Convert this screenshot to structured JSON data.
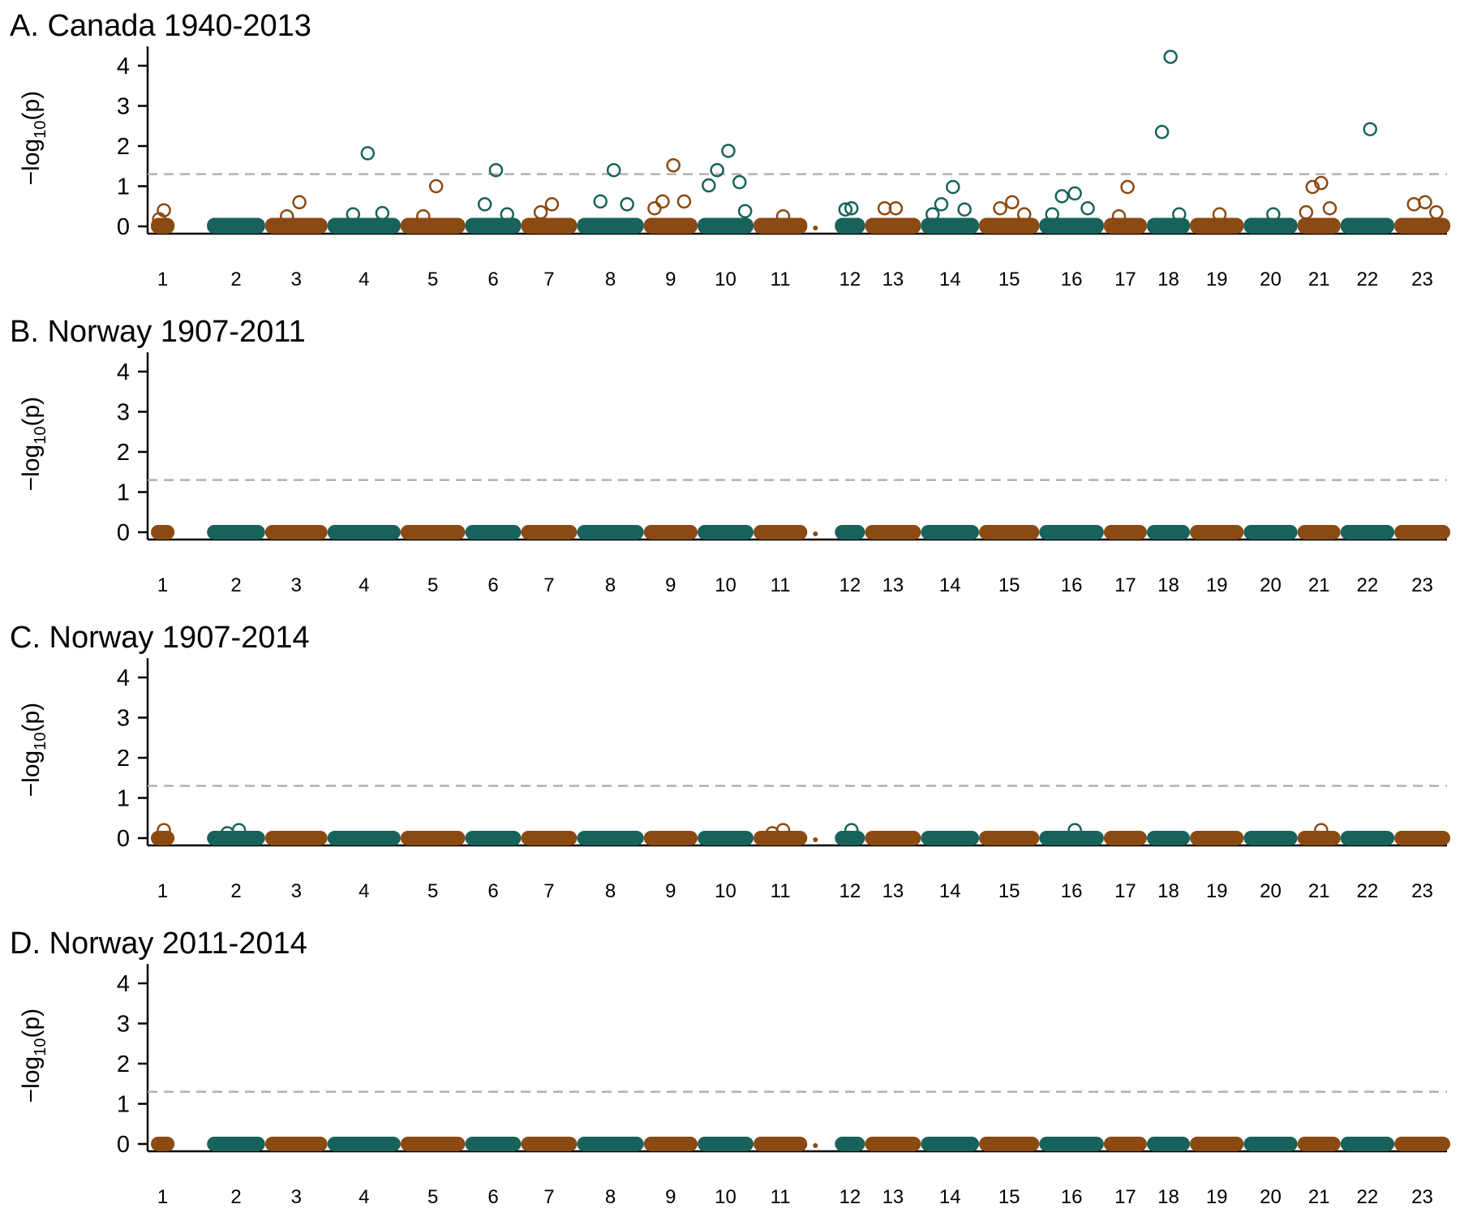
{
  "colors": {
    "teal": "#17635b",
    "brown": "#8b4a12",
    "threshold": "#b0b0b0",
    "axis": "#000000"
  },
  "y_axis_label": {
    "prefix": "−log",
    "subscript": "10",
    "suffix": "(p)"
  },
  "chart_data": [
    {
      "type": "scatter",
      "title": "A. Canada 1940-2013",
      "ylabel": "−log10(p)",
      "yticks": [
        0,
        1,
        2,
        3,
        4
      ],
      "ylim": [
        0,
        4.4
      ],
      "threshold": 1.3,
      "chromosomes": [
        "1",
        "2",
        "3",
        "4",
        "5",
        "6",
        "7",
        "8",
        "9",
        "10",
        "11",
        "12",
        "13",
        "14",
        "15",
        "16",
        "17",
        "18",
        "19",
        "20",
        "21",
        "22",
        "23"
      ],
      "base_band": 0.03,
      "highlights": [
        {
          "chr": "1",
          "y": 0.4
        },
        {
          "chr": "1",
          "y": 0.18
        },
        {
          "chr": "3",
          "y": 0.6
        },
        {
          "chr": "3",
          "y": 0.25
        },
        {
          "chr": "4",
          "y": 1.82
        },
        {
          "chr": "4",
          "y": 0.3
        },
        {
          "chr": "4",
          "y": 0.33
        },
        {
          "chr": "5",
          "y": 1.0
        },
        {
          "chr": "5",
          "y": 0.25
        },
        {
          "chr": "6",
          "y": 1.4
        },
        {
          "chr": "6",
          "y": 0.55
        },
        {
          "chr": "6",
          "y": 0.3
        },
        {
          "chr": "7",
          "y": 0.55
        },
        {
          "chr": "7",
          "y": 0.35
        },
        {
          "chr": "8",
          "y": 1.4
        },
        {
          "chr": "8",
          "y": 0.62
        },
        {
          "chr": "8",
          "y": 0.55
        },
        {
          "chr": "9",
          "y": 1.52
        },
        {
          "chr": "9",
          "y": 0.62
        },
        {
          "chr": "9",
          "y": 0.62
        },
        {
          "chr": "9",
          "y": 0.45
        },
        {
          "chr": "10",
          "y": 1.88
        },
        {
          "chr": "10",
          "y": 1.4
        },
        {
          "chr": "10",
          "y": 1.1
        },
        {
          "chr": "10",
          "y": 1.02
        },
        {
          "chr": "10",
          "y": 0.38
        },
        {
          "chr": "11",
          "y": 0.25
        },
        {
          "chr": "12",
          "y": 0.45
        },
        {
          "chr": "12",
          "y": 0.42
        },
        {
          "chr": "13",
          "y": 0.45
        },
        {
          "chr": "13",
          "y": 0.45
        },
        {
          "chr": "14",
          "y": 0.98
        },
        {
          "chr": "14",
          "y": 0.55
        },
        {
          "chr": "14",
          "y": 0.42
        },
        {
          "chr": "14",
          "y": 0.3
        },
        {
          "chr": "15",
          "y": 0.6
        },
        {
          "chr": "15",
          "y": 0.45
        },
        {
          "chr": "15",
          "y": 0.3
        },
        {
          "chr": "16",
          "y": 0.82
        },
        {
          "chr": "16",
          "y": 0.75
        },
        {
          "chr": "16",
          "y": 0.45
        },
        {
          "chr": "16",
          "y": 0.3
        },
        {
          "chr": "17",
          "y": 0.98
        },
        {
          "chr": "17",
          "y": 0.25
        },
        {
          "chr": "18",
          "y": 4.22
        },
        {
          "chr": "18",
          "y": 2.35
        },
        {
          "chr": "18",
          "y": 0.3
        },
        {
          "chr": "19",
          "y": 0.3
        },
        {
          "chr": "20",
          "y": 0.3
        },
        {
          "chr": "21",
          "y": 1.08
        },
        {
          "chr": "21",
          "y": 0.98
        },
        {
          "chr": "21",
          "y": 0.45
        },
        {
          "chr": "21",
          "y": 0.35
        },
        {
          "chr": "22",
          "y": 2.42
        },
        {
          "chr": "23",
          "y": 0.6
        },
        {
          "chr": "23",
          "y": 0.55
        },
        {
          "chr": "23",
          "y": 0.35
        }
      ]
    },
    {
      "type": "scatter",
      "title": "B. Norway 1907-2011",
      "ylabel": "−log10(p)",
      "yticks": [
        0,
        1,
        2,
        3,
        4
      ],
      "ylim": [
        0,
        4.4
      ],
      "threshold": 1.3,
      "chromosomes": [
        "1",
        "2",
        "3",
        "4",
        "5",
        "6",
        "7",
        "8",
        "9",
        "10",
        "11",
        "12",
        "13",
        "14",
        "15",
        "16",
        "17",
        "18",
        "19",
        "20",
        "21",
        "22",
        "23"
      ],
      "base_band": 0.0,
      "highlights": []
    },
    {
      "type": "scatter",
      "title": "C. Norway 1907-2014",
      "ylabel": "−log10(p)",
      "yticks": [
        0,
        1,
        2,
        3,
        4
      ],
      "ylim": [
        0,
        4.4
      ],
      "threshold": 1.3,
      "chromosomes": [
        "1",
        "2",
        "3",
        "4",
        "5",
        "6",
        "7",
        "8",
        "9",
        "10",
        "11",
        "12",
        "13",
        "14",
        "15",
        "16",
        "17",
        "18",
        "19",
        "20",
        "21",
        "22",
        "23"
      ],
      "base_band": 0.0,
      "highlights": [
        {
          "chr": "1",
          "y": 0.2
        },
        {
          "chr": "2",
          "y": 0.2
        },
        {
          "chr": "2",
          "y": 0.12
        },
        {
          "chr": "11",
          "y": 0.2
        },
        {
          "chr": "11",
          "y": 0.12
        },
        {
          "chr": "12",
          "y": 0.2
        },
        {
          "chr": "16",
          "y": 0.2
        },
        {
          "chr": "21",
          "y": 0.2
        }
      ]
    },
    {
      "type": "scatter",
      "title": "D. Norway 2011-2014",
      "ylabel": "−log10(p)",
      "yticks": [
        0,
        1,
        2,
        3,
        4
      ],
      "ylim": [
        0,
        4.4
      ],
      "threshold": 1.3,
      "chromosomes": [
        "1",
        "2",
        "3",
        "4",
        "5",
        "6",
        "7",
        "8",
        "9",
        "10",
        "11",
        "12",
        "13",
        "14",
        "15",
        "16",
        "17",
        "18",
        "19",
        "20",
        "21",
        "22",
        "23"
      ],
      "base_band": 0.0,
      "highlights": []
    }
  ]
}
